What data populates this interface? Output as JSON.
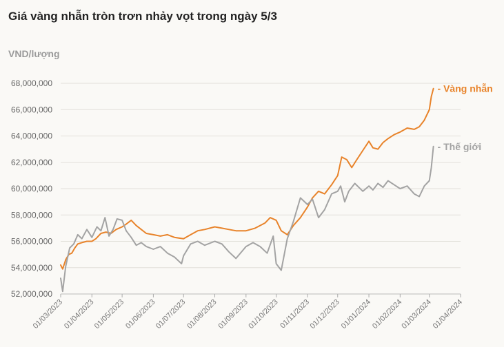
{
  "chart_data": {
    "type": "line",
    "title": "Giá vàng nhẫn tròn trơn nhảy vọt trong ngày 5/3",
    "ylabel": "VND/lượng",
    "xlabel": "",
    "ylim": [
      52000000,
      68000000
    ],
    "yticks": [
      52000000,
      54000000,
      56000000,
      58000000,
      60000000,
      62000000,
      64000000,
      66000000,
      68000000
    ],
    "ytick_labels": [
      "52,000,000",
      "54,000,000",
      "56,000,000",
      "58,000,000",
      "60,000,000",
      "62,000,000",
      "64,000,000",
      "66,000,000",
      "68,000,000"
    ],
    "xticks": [
      "2023-03-01",
      "2023-04-01",
      "2023-05-01",
      "2023-06-01",
      "2023-07-01",
      "2023-08-01",
      "2023-09-01",
      "2023-10-01",
      "2023-11-01",
      "2023-12-01",
      "2024-01-01",
      "2024-02-01",
      "2024-03-01",
      "2024-04-01"
    ],
    "xtick_labels": [
      "01/03/2023",
      "01/04/2023",
      "01/05/2023",
      "01/06/2023",
      "01/07/2023",
      "01/08/2023",
      "01/09/2023",
      "01/10/2023",
      "01/11/2023",
      "01/12/2023",
      "01/01/2024",
      "01/02/2024",
      "01/03/2024",
      "01/04/2024"
    ],
    "grid": true,
    "series": [
      {
        "name": "Vàng nhẫn",
        "color": "#e8832a",
        "x": [
          "2023-03-01",
          "2023-03-03",
          "2023-03-06",
          "2023-03-09",
          "2023-03-12",
          "2023-03-15",
          "2023-03-18",
          "2023-03-22",
          "2023-03-27",
          "2023-04-01",
          "2023-04-05",
          "2023-04-10",
          "2023-04-15",
          "2023-04-20",
          "2023-04-25",
          "2023-05-01",
          "2023-05-05",
          "2023-05-10",
          "2023-05-15",
          "2023-05-20",
          "2023-05-25",
          "2023-06-01",
          "2023-06-08",
          "2023-06-15",
          "2023-06-22",
          "2023-07-01",
          "2023-07-08",
          "2023-07-15",
          "2023-07-22",
          "2023-08-01",
          "2023-08-08",
          "2023-08-15",
          "2023-08-22",
          "2023-09-01",
          "2023-09-10",
          "2023-09-20",
          "2023-09-25",
          "2023-10-01",
          "2023-10-06",
          "2023-10-12",
          "2023-10-18",
          "2023-10-25",
          "2023-11-01",
          "2023-11-06",
          "2023-11-12",
          "2023-11-18",
          "2023-11-25",
          "2023-12-01",
          "2023-12-05",
          "2023-12-10",
          "2023-12-15",
          "2023-12-20",
          "2023-12-26",
          "2024-01-01",
          "2024-01-05",
          "2024-01-10",
          "2024-01-15",
          "2024-01-20",
          "2024-01-26",
          "2024-02-01",
          "2024-02-08",
          "2024-02-15",
          "2024-02-20",
          "2024-02-25",
          "2024-03-01",
          "2024-03-03",
          "2024-03-05"
        ],
        "values": [
          54200000,
          53900000,
          54600000,
          55000000,
          55100000,
          55500000,
          55800000,
          55900000,
          56000000,
          56000000,
          56200000,
          56600000,
          56700000,
          56600000,
          56900000,
          57100000,
          57300000,
          57600000,
          57200000,
          56900000,
          56600000,
          56500000,
          56400000,
          56500000,
          56300000,
          56200000,
          56500000,
          56800000,
          56900000,
          57100000,
          57000000,
          56900000,
          56800000,
          56800000,
          57000000,
          57400000,
          57800000,
          57600000,
          56800000,
          56500000,
          57200000,
          57800000,
          58600000,
          59300000,
          59800000,
          59600000,
          60300000,
          61000000,
          62400000,
          62200000,
          61600000,
          62200000,
          62900000,
          63600000,
          63100000,
          63000000,
          63500000,
          63800000,
          64100000,
          64300000,
          64600000,
          64500000,
          64700000,
          65200000,
          66000000,
          67000000,
          67600000
        ]
      },
      {
        "name": "Thế giới",
        "color": "#a3a3a3",
        "x": [
          "2023-03-01",
          "2023-03-03",
          "2023-03-06",
          "2023-03-10",
          "2023-03-14",
          "2023-03-18",
          "2023-03-22",
          "2023-03-27",
          "2023-04-01",
          "2023-04-06",
          "2023-04-10",
          "2023-04-14",
          "2023-04-18",
          "2023-04-22",
          "2023-04-26",
          "2023-05-01",
          "2023-05-05",
          "2023-05-10",
          "2023-05-15",
          "2023-05-20",
          "2023-05-25",
          "2023-06-01",
          "2023-06-08",
          "2023-06-15",
          "2023-06-22",
          "2023-06-29",
          "2023-07-01",
          "2023-07-08",
          "2023-07-15",
          "2023-07-22",
          "2023-08-01",
          "2023-08-08",
          "2023-08-15",
          "2023-08-22",
          "2023-09-01",
          "2023-09-08",
          "2023-09-15",
          "2023-09-22",
          "2023-09-28",
          "2023-10-01",
          "2023-10-06",
          "2023-10-12",
          "2023-10-18",
          "2023-10-25",
          "2023-11-01",
          "2023-11-06",
          "2023-11-12",
          "2023-11-18",
          "2023-11-25",
          "2023-12-01",
          "2023-12-04",
          "2023-12-08",
          "2023-12-12",
          "2023-12-18",
          "2023-12-26",
          "2024-01-01",
          "2024-01-05",
          "2024-01-10",
          "2024-01-15",
          "2024-01-20",
          "2024-01-26",
          "2024-02-01",
          "2024-02-08",
          "2024-02-15",
          "2024-02-20",
          "2024-02-25",
          "2024-03-01",
          "2024-03-03",
          "2024-03-05"
        ],
        "values": [
          53200000,
          52200000,
          54100000,
          55500000,
          55800000,
          56500000,
          56200000,
          56900000,
          56300000,
          57100000,
          56800000,
          57800000,
          56400000,
          56900000,
          57700000,
          57600000,
          56800000,
          56300000,
          55700000,
          55900000,
          55600000,
          55400000,
          55600000,
          55100000,
          54800000,
          54300000,
          54900000,
          55800000,
          56000000,
          55700000,
          56000000,
          55800000,
          55200000,
          54700000,
          55600000,
          55900000,
          55600000,
          55100000,
          56400000,
          54300000,
          53800000,
          56200000,
          57500000,
          59300000,
          58800000,
          59200000,
          57800000,
          58400000,
          59600000,
          59800000,
          60200000,
          59000000,
          59800000,
          60400000,
          59800000,
          60200000,
          59900000,
          60400000,
          60100000,
          60600000,
          60300000,
          60000000,
          60200000,
          59600000,
          59400000,
          60200000,
          60600000,
          61600000,
          63200000
        ]
      }
    ]
  }
}
